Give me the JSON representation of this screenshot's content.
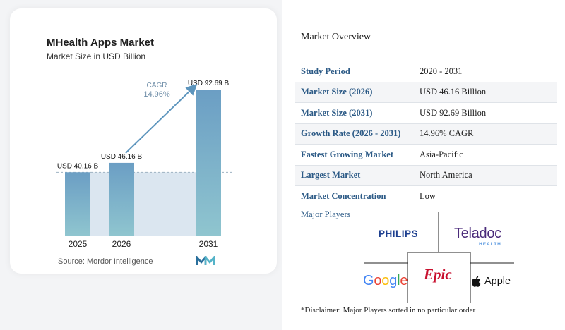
{
  "chart_data": {
    "type": "bar",
    "title": "MHealth Apps Market",
    "subtitle": "Market Size in USD Billion",
    "categories": [
      "2025",
      "2026",
      "2031"
    ],
    "values": [
      40.16,
      46.16,
      92.69
    ],
    "value_labels": [
      "USD 40.16 B",
      "USD 46.16 B",
      "USD 92.69 B"
    ],
    "cagr_label": "CAGR",
    "cagr_value": "14.96%",
    "ylim": [
      0,
      100
    ],
    "grid": false,
    "colors": {
      "bar_top": "#6b9ec4",
      "bar_bottom": "#8fc5cf",
      "shade": "#dbe6f0",
      "arrow": "#5d95bd",
      "baseline": "#9fb3c2"
    }
  },
  "source": "Source: Mordor Intelligence",
  "overview": {
    "title": "Market Overview",
    "rows": [
      {
        "label": "Study Period",
        "value": "2020 - 2031"
      },
      {
        "label": "Market Size (2026)",
        "value": "USD 46.16 Billion"
      },
      {
        "label": "Market Size (2031)",
        "value": "USD 92.69 Billion"
      },
      {
        "label": "Growth Rate (2026 - 2031)",
        "value": "14.96% CAGR"
      },
      {
        "label": "Fastest Growing Market",
        "value": "Asia-Pacific"
      },
      {
        "label": "Largest Market",
        "value": "North America"
      },
      {
        "label": "Market Concentration",
        "value": "Low"
      }
    ]
  },
  "players": {
    "title": "Major Players",
    "philips": "PHILIPS",
    "teladoc": "Teladoc",
    "teladoc_sub": "HEALTH",
    "google": [
      "G",
      "o",
      "o",
      "g",
      "l",
      "e"
    ],
    "epic": "Epic",
    "apple": "Apple"
  },
  "disclaimer": "*Disclaimer: Major Players sorted in no particular order",
  "icons": {
    "brand": "mordor-intelligence-logo-icon",
    "apple": "apple-logo-icon"
  }
}
